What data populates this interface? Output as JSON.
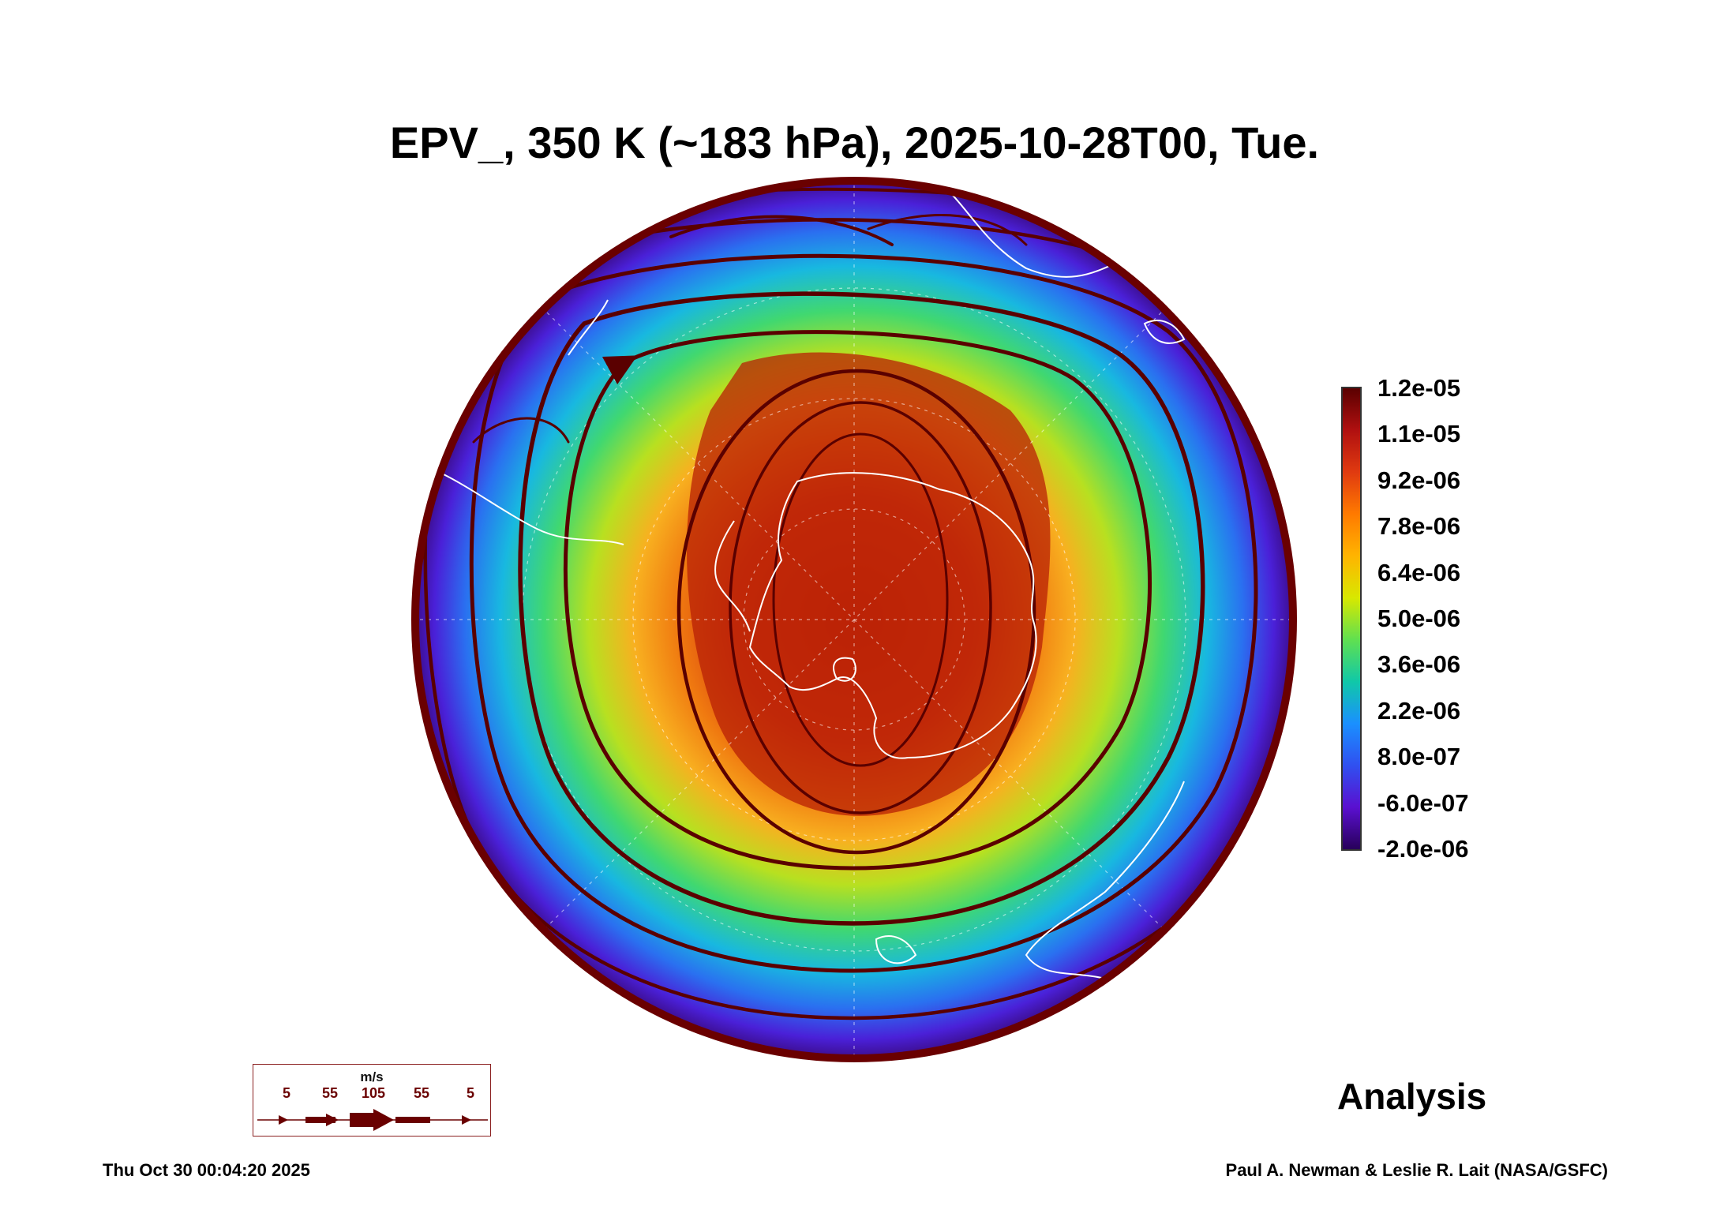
{
  "title": "EPV_, 350 K (~183 hPa), 2025-10-28T00, Tue.",
  "colorbar": {
    "labels": [
      "1.2e-05",
      "1.1e-05",
      "9.2e-06",
      "7.8e-06",
      "6.4e-06",
      "5.0e-06",
      "3.6e-06",
      "2.2e-06",
      "8.0e-07",
      "-6.0e-07",
      "-2.0e-06"
    ],
    "colors": [
      "#5a0000",
      "#b01010",
      "#e03a10",
      "#ff7a00",
      "#ffb400",
      "#d8e800",
      "#60e050",
      "#10c8a8",
      "#1a90ff",
      "#3050f0",
      "#5a10d0",
      "#28005a"
    ]
  },
  "wind_legend": {
    "unit": "m/s",
    "speeds": [
      "5",
      "55",
      "105",
      "55",
      "5"
    ],
    "color": "#6a0000"
  },
  "analysis_label": "Analysis",
  "timestamp": "Thu Oct 30 00:04:20 2025",
  "credit": "Paul A. Newman & Leslie R. Lait (NASA/GSFC)",
  "colors": {
    "streamline": "#5a0000",
    "coastline": "#ffffff"
  }
}
